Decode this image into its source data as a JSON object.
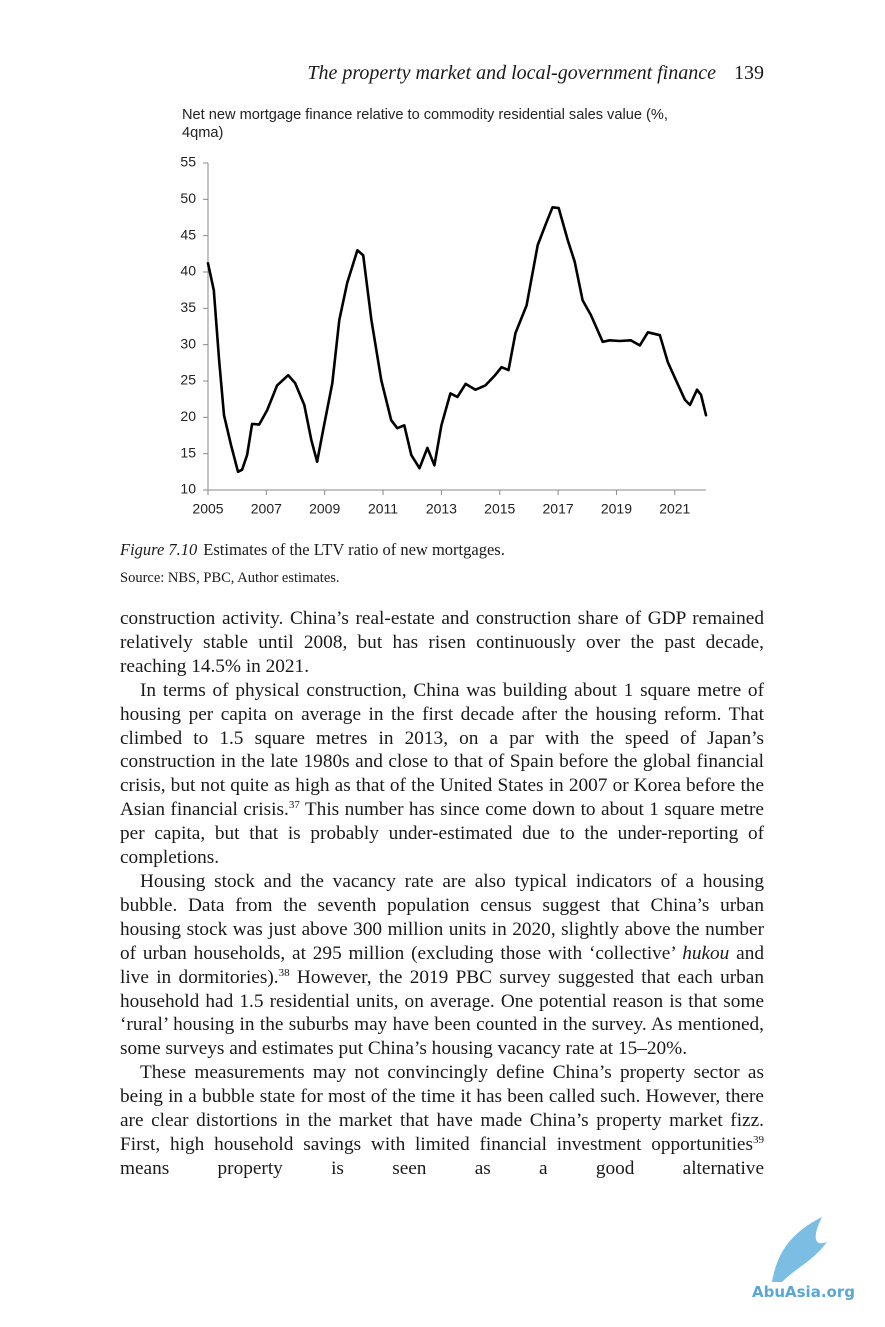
{
  "header": {
    "title": "The property market and local-government finance",
    "page": "139"
  },
  "chart_data": {
    "type": "line",
    "title": "Net new mortgage finance relative to commodity residential sales value (%, 4qma)",
    "color": "#000000",
    "x": [
      2005,
      2005.2,
      2005.38,
      2005.55,
      2005.79,
      2006.03,
      2006.17,
      2006.34,
      2006.51,
      2006.75,
      2007.03,
      2007.37,
      2007.75,
      2007.99,
      2008.3,
      2008.54,
      2008.74,
      2008.95,
      2009.26,
      2009.5,
      2009.77,
      2010.12,
      2010.32,
      2010.6,
      2010.94,
      2011.28,
      2011.49,
      2011.73,
      2011.97,
      2012.25,
      2012.52,
      2012.76,
      2013,
      2013.31,
      2013.55,
      2013.83,
      2014.17,
      2014.51,
      2014.82,
      2015.06,
      2015.3,
      2015.54,
      2015.92,
      2016.3,
      2016.57,
      2016.81,
      2017.02,
      2017.33,
      2017.57,
      2017.84,
      2018.12,
      2018.53,
      2018.77,
      2019.11,
      2019.49,
      2019.8,
      2020.08,
      2020.49,
      2020.76,
      2021.04,
      2021.35,
      2021.52,
      2021.76,
      2021.9,
      2022.07
    ],
    "values": [
      41.2,
      37.5,
      27.9,
      20.3,
      16.2,
      12.5,
      12.8,
      14.8,
      19.1,
      19,
      21,
      24.4,
      25.8,
      24.7,
      21.7,
      16.9,
      13.9,
      18.3,
      24.7,
      33.4,
      38.5,
      43,
      42.3,
      33.4,
      25.1,
      19.6,
      18.5,
      18.9,
      14.8,
      13,
      15.8,
      13.4,
      18.9,
      23.3,
      22.8,
      24.6,
      23.8,
      24.4,
      25.7,
      26.9,
      26.5,
      31.6,
      35.4,
      43.7,
      46.5,
      48.9,
      48.8,
      44.4,
      41.4,
      36.1,
      34.1,
      30.4,
      30.6,
      30.5,
      30.6,
      29.9,
      31.7,
      31.3,
      27.6,
      25.1,
      22.4,
      21.7,
      23.8,
      23.1,
      20.3
    ],
    "xlim": [
      2005,
      2022.07
    ],
    "xticks": [
      2005,
      2007,
      2009,
      2011,
      2013,
      2015,
      2017,
      2019,
      2021
    ],
    "ylim": [
      10,
      55
    ],
    "yticks": [
      10,
      15,
      20,
      25,
      30,
      35,
      40,
      45,
      50,
      55
    ],
    "grid": false
  },
  "caption": {
    "label": "Figure 7.10",
    "text": "Estimates of the LTV ratio of new mortgages.",
    "source": "Source: NBS, PBC, Author estimates."
  },
  "paragraphs": [
    {
      "runs": [
        {
          "text": "construction activity. China’s real-estate and construction share of GDP remained relatively stable until 2008, but has risen continuously over the past decade, reaching 14.5% in 2021."
        }
      ]
    },
    {
      "runs": [
        {
          "text": "In terms of physical construction, China was building about 1 square metre of housing per capita on average in the first decade after the housing reform. That climbed to 1.5 square metres in 2013, on a par with the speed of Japan’s construction in the late 1980s and close to that of Spain before the global financial crisis, but not quite as high as that of the United States in 2007 or Korea before the Asian financial crisis."
        },
        {
          "sup": "37"
        },
        {
          "text": " This number has since come down to about 1 square metre per capita, but that is probably under-estimated due to the under-reporting of completions."
        }
      ]
    },
    {
      "runs": [
        {
          "text": "Housing stock and the vacancy rate are also typical indicators of a housing bubble. Data from the seventh population census suggest that China’s urban housing stock was just above 300 million units in 2020, slightly above the number of urban households, at 295 million (excluding those with ‘collective’ "
        },
        {
          "em": "hukou"
        },
        {
          "text": " and live in dormitories)."
        },
        {
          "sup": "38"
        },
        {
          "text": " However, the 2019 PBC survey suggested that each urban household had 1.5 residential units, on average. One potential reason is that some ‘rural’ housing in the suburbs may have been counted in the survey. As mentioned, some surveys and estimates put China’s housing vacancy rate at 15–20%."
        }
      ]
    },
    {
      "runs": [
        {
          "text": "These measurements may not convincingly define China’s property sector as being in a bubble state for most of the time it has been called such. However, there are clear distortions in the market that have made China’s property market fizz. First, high household savings with limited financial investment opportunities"
        },
        {
          "sup": "39"
        },
        {
          "text": " means property is seen as a good alternative"
        }
      ]
    }
  ],
  "watermark": "AbuAsia.org"
}
